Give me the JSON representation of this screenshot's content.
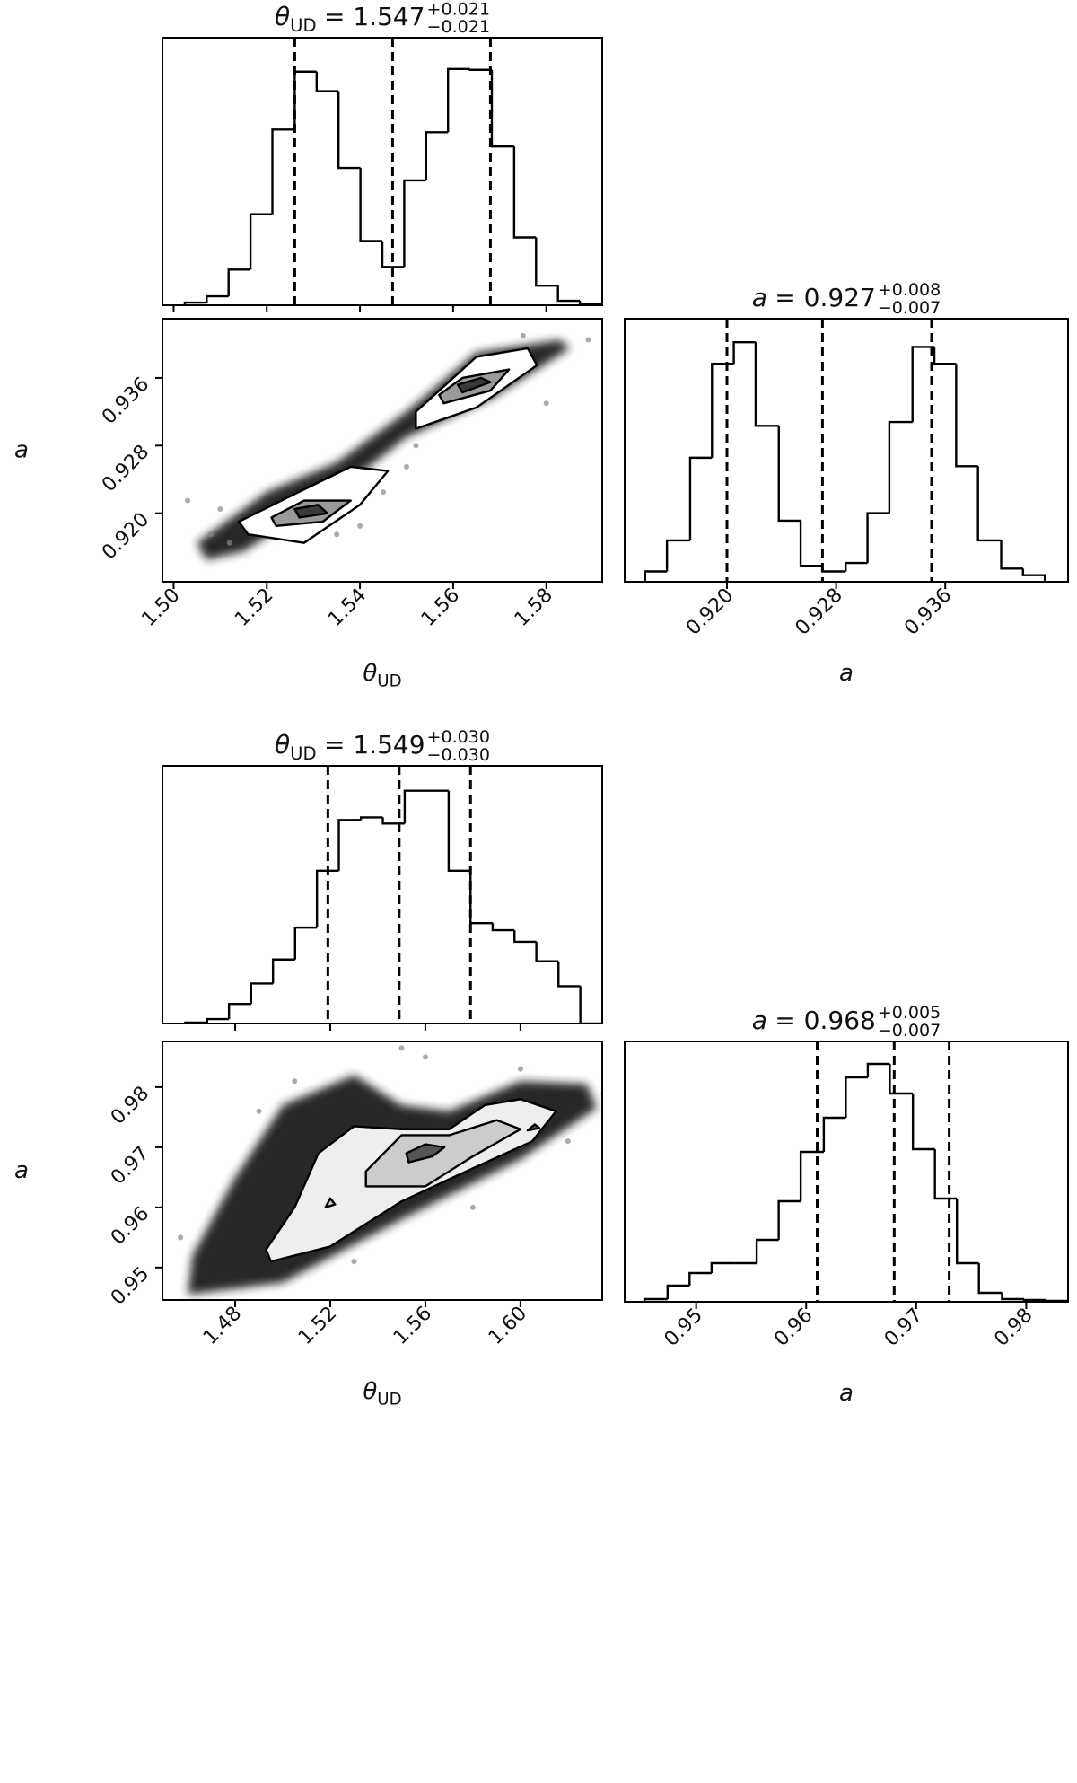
{
  "chart_data": [
    {
      "type": "histogram",
      "title": {
        "symbol": "θ",
        "subscript": "UD",
        "text": "= 1.547",
        "upper": "+0.021",
        "lower": "−0.021"
      },
      "bins": [
        1.5024,
        1.5071,
        1.5118,
        1.5165,
        1.5212,
        1.526,
        1.5307,
        1.5354,
        1.5401,
        1.5448,
        1.5495,
        1.5542,
        1.5589,
        1.5636,
        1.5683,
        1.5731,
        1.5778,
        1.5825,
        1.5872,
        1.5919
      ],
      "values": [
        3,
        10,
        40,
        102,
        197,
        262,
        240,
        154,
        72,
        43,
        140,
        194,
        265,
        264,
        178,
        76,
        22,
        5,
        1
      ],
      "quantiles": [
        1.526,
        1.547,
        1.568
      ],
      "xlim": [
        1.4976,
        1.592
      ],
      "ylim": [
        0,
        300
      ],
      "color": "#000000"
    },
    {
      "type": "contour",
      "xlabel": {
        "symbol": "θ",
        "subscript": "UD"
      },
      "ylabel": {
        "symbol": "a"
      },
      "xlim": [
        1.4976,
        1.592
      ],
      "ylim": [
        0.9119,
        0.943
      ],
      "xticks": [
        {
          "value": 1.5,
          "label": "1.50"
        },
        1.52,
        1.54,
        1.56,
        1.58
      ],
      "yticks": [
        {
          "value": 0.92,
          "label": "0.920"
        },
        {
          "value": 0.928,
          "label": "0.928"
        },
        {
          "value": 0.936,
          "label": "0.936"
        }
      ],
      "points": {
        "color": "#888888",
        "x": [
          1.503,
          1.508,
          1.512,
          1.545,
          1.55,
          1.552,
          1.54,
          1.58,
          1.575,
          1.535,
          1.51,
          1.589
        ],
        "y": [
          0.9215,
          0.9175,
          0.9165,
          0.9225,
          0.9255,
          0.928,
          0.9185,
          0.933,
          0.941,
          0.9175,
          0.9205,
          0.9405
        ]
      },
      "regions": [
        {
          "color": "#1a1a1a",
          "x": [
            1.507,
            1.515,
            1.535,
            1.55,
            1.568,
            1.585,
            1.583,
            1.565,
            1.55,
            1.535,
            1.52,
            1.505
          ],
          "y": [
            0.9145,
            0.9155,
            0.9225,
            0.929,
            0.9335,
            0.9395,
            0.9405,
            0.939,
            0.932,
            0.926,
            0.9225,
            0.9165
          ]
        },
        {
          "color": "#ffffff",
          "edgecolor": "#000000",
          "x": [
            1.516,
            1.528,
            1.54,
            1.546,
            1.538,
            1.525,
            1.514
          ],
          "y": [
            0.9175,
            0.9165,
            0.921,
            0.925,
            0.9255,
            0.922,
            0.919
          ]
        },
        {
          "color": "#ffffff",
          "edgecolor": "#000000",
          "x": [
            1.552,
            1.565,
            1.578,
            1.576,
            1.565,
            1.552
          ],
          "y": [
            0.93,
            0.9325,
            0.9375,
            0.9395,
            0.9385,
            0.932
          ]
        },
        {
          "color": "#9a9a9a",
          "edgecolor": "#000000",
          "x": [
            1.522,
            1.532,
            1.538,
            1.528,
            1.521
          ],
          "y": [
            0.9185,
            0.919,
            0.9215,
            0.9215,
            0.9195
          ]
        },
        {
          "color": "#9a9a9a",
          "edgecolor": "#000000",
          "x": [
            1.558,
            1.568,
            1.572,
            1.562,
            1.557
          ],
          "y": [
            0.933,
            0.9345,
            0.937,
            0.936,
            0.934
          ]
        },
        {
          "color": "#3a3a3a",
          "edgecolor": "#000000",
          "x": [
            1.527,
            1.533,
            1.531,
            1.526
          ],
          "y": [
            0.9195,
            0.92,
            0.921,
            0.9205
          ]
        },
        {
          "color": "#3a3a3a",
          "edgecolor": "#000000",
          "x": [
            1.562,
            1.568,
            1.566,
            1.561
          ],
          "y": [
            0.9343,
            0.9355,
            0.936,
            0.9352
          ]
        }
      ]
    },
    {
      "type": "histogram",
      "title": {
        "symbol": "a",
        "text": "= 0.927",
        "upper": "+0.008",
        "lower": "−0.007"
      },
      "xlabel": {
        "symbol": "a"
      },
      "bins": [
        0.914,
        0.9156,
        0.9173,
        0.9189,
        0.9205,
        0.9221,
        0.9238,
        0.9254,
        0.927,
        0.9287,
        0.9303,
        0.9319,
        0.9336,
        0.9352,
        0.9368,
        0.9384,
        0.9401,
        0.9417,
        0.9433
      ],
      "values": [
        11,
        44,
        132,
        232,
        255,
        166,
        65,
        17,
        11,
        20,
        73,
        170,
        250,
        232,
        123,
        44,
        14,
        7
      ],
      "quantiles": [
        0.92,
        0.927,
        0.935
      ],
      "xlim": [
        0.9125,
        0.945
      ],
      "ylim": [
        0,
        280
      ],
      "xticks": [
        {
          "value": 0.92,
          "label": "0.920"
        },
        {
          "value": 0.928,
          "label": "0.928"
        },
        {
          "value": 0.936,
          "label": "0.936"
        }
      ],
      "color": "#000000"
    },
    {
      "type": "histogram",
      "title": {
        "symbol": "θ",
        "subscript": "UD",
        "text": "= 1.549",
        "upper": "+0.030",
        "lower": "−0.030"
      },
      "bins": [
        1.459,
        1.4682,
        1.4774,
        1.4867,
        1.4959,
        1.5052,
        1.5144,
        1.5236,
        1.5329,
        1.5421,
        1.5513,
        1.5606,
        1.5698,
        1.579,
        1.5883,
        1.5975,
        1.6067,
        1.616,
        1.6252,
        1.6344
      ],
      "values": [
        1,
        5,
        22,
        45,
        72,
        108,
        172,
        229,
        232,
        225,
        262,
        262,
        172,
        113,
        105,
        92,
        70,
        42,
        0
      ],
      "quantiles": [
        1.519,
        1.549,
        1.579
      ],
      "xlim": [
        1.4494,
        1.6344
      ],
      "ylim": [
        0,
        290
      ],
      "color": "#000000"
    },
    {
      "type": "contour",
      "xlabel": {
        "symbol": "θ",
        "subscript": "UD"
      },
      "ylabel": {
        "symbol": "a"
      },
      "xlim": [
        1.4494,
        1.6344
      ],
      "ylim": [
        0.9446,
        0.9876
      ],
      "xticks": [
        1.48,
        1.52,
        1.56,
        {
          "value": 1.6,
          "label": "1.60"
        }
      ],
      "yticks": [
        0.95,
        0.96,
        0.97,
        0.98
      ],
      "points": {
        "color": "#888888",
        "x": [
          1.457,
          1.47,
          1.49,
          1.55,
          1.6,
          1.62,
          1.58,
          1.505,
          1.53,
          1.56,
          1.635
        ],
        "y": [
          0.955,
          0.944,
          0.976,
          0.9865,
          0.983,
          0.971,
          0.96,
          0.981,
          0.951,
          0.985,
          0.979
        ]
      },
      "regions": [
        {
          "color": "#1a1a1a",
          "x": [
            1.46,
            1.5,
            1.55,
            1.6,
            1.632,
            1.628,
            1.6,
            1.57,
            1.55,
            1.53,
            1.5,
            1.48,
            1.462
          ],
          "y": [
            0.9455,
            0.9475,
            0.958,
            0.968,
            0.9765,
            0.9805,
            0.981,
            0.976,
            0.977,
            0.982,
            0.977,
            0.965,
            0.952
          ]
        },
        {
          "color": "#eeeeee",
          "edgecolor": "#000000",
          "x": [
            1.495,
            1.52,
            1.55,
            1.58,
            1.605,
            1.615,
            1.6,
            1.585,
            1.57,
            1.55,
            1.53,
            1.515,
            1.505,
            1.493
          ],
          "y": [
            0.951,
            0.9535,
            0.961,
            0.9665,
            0.971,
            0.976,
            0.978,
            0.977,
            0.973,
            0.973,
            0.9735,
            0.969,
            0.96,
            0.953
          ]
        },
        {
          "color": "#cccccc",
          "edgecolor": "#000000",
          "x": [
            1.535,
            1.56,
            1.58,
            1.6,
            1.59,
            1.57,
            1.55,
            1.535
          ],
          "y": [
            0.9635,
            0.9635,
            0.9685,
            0.973,
            0.9745,
            0.972,
            0.972,
            0.966
          ]
        },
        {
          "color": "#cccccc",
          "edgecolor": "#000000",
          "x": [
            1.518,
            1.522,
            1.52
          ],
          "y": [
            0.96,
            0.9605,
            0.9615
          ]
        },
        {
          "color": "#555555",
          "edgecolor": "#000000",
          "x": [
            1.553,
            1.563,
            1.568,
            1.56,
            1.552
          ],
          "y": [
            0.9675,
            0.9685,
            0.97,
            0.9705,
            0.969
          ]
        },
        {
          "color": "#555555",
          "edgecolor": "#000000",
          "x": [
            1.603,
            1.608,
            1.606
          ],
          "y": [
            0.9728,
            0.9732,
            0.9738
          ]
        }
      ]
    },
    {
      "type": "histogram",
      "title": {
        "symbol": "a",
        "text": "= 0.968",
        "upper": "+0.005",
        "lower": "−0.007"
      },
      "xlabel": {
        "symbol": "a"
      },
      "bins": [
        0.9453,
        0.9474,
        0.9494,
        0.9514,
        0.9535,
        0.9555,
        0.9575,
        0.9595,
        0.9616,
        0.9636,
        0.9656,
        0.9676,
        0.9697,
        0.9717,
        0.9737,
        0.9757,
        0.9778,
        0.9798,
        0.9818,
        0.9838
      ],
      "values": [
        3,
        18,
        32,
        43,
        43,
        69,
        112,
        167,
        205,
        250,
        265,
        232,
        170,
        115,
        43,
        10,
        3,
        2,
        1
      ],
      "quantiles": [
        0.961,
        0.968,
        0.973
      ],
      "xlim": [
        0.9435,
        0.9838
      ],
      "ylim": [
        0,
        290
      ],
      "xticks": [
        0.95,
        0.96,
        0.97,
        0.98
      ],
      "color": "#000000"
    }
  ]
}
